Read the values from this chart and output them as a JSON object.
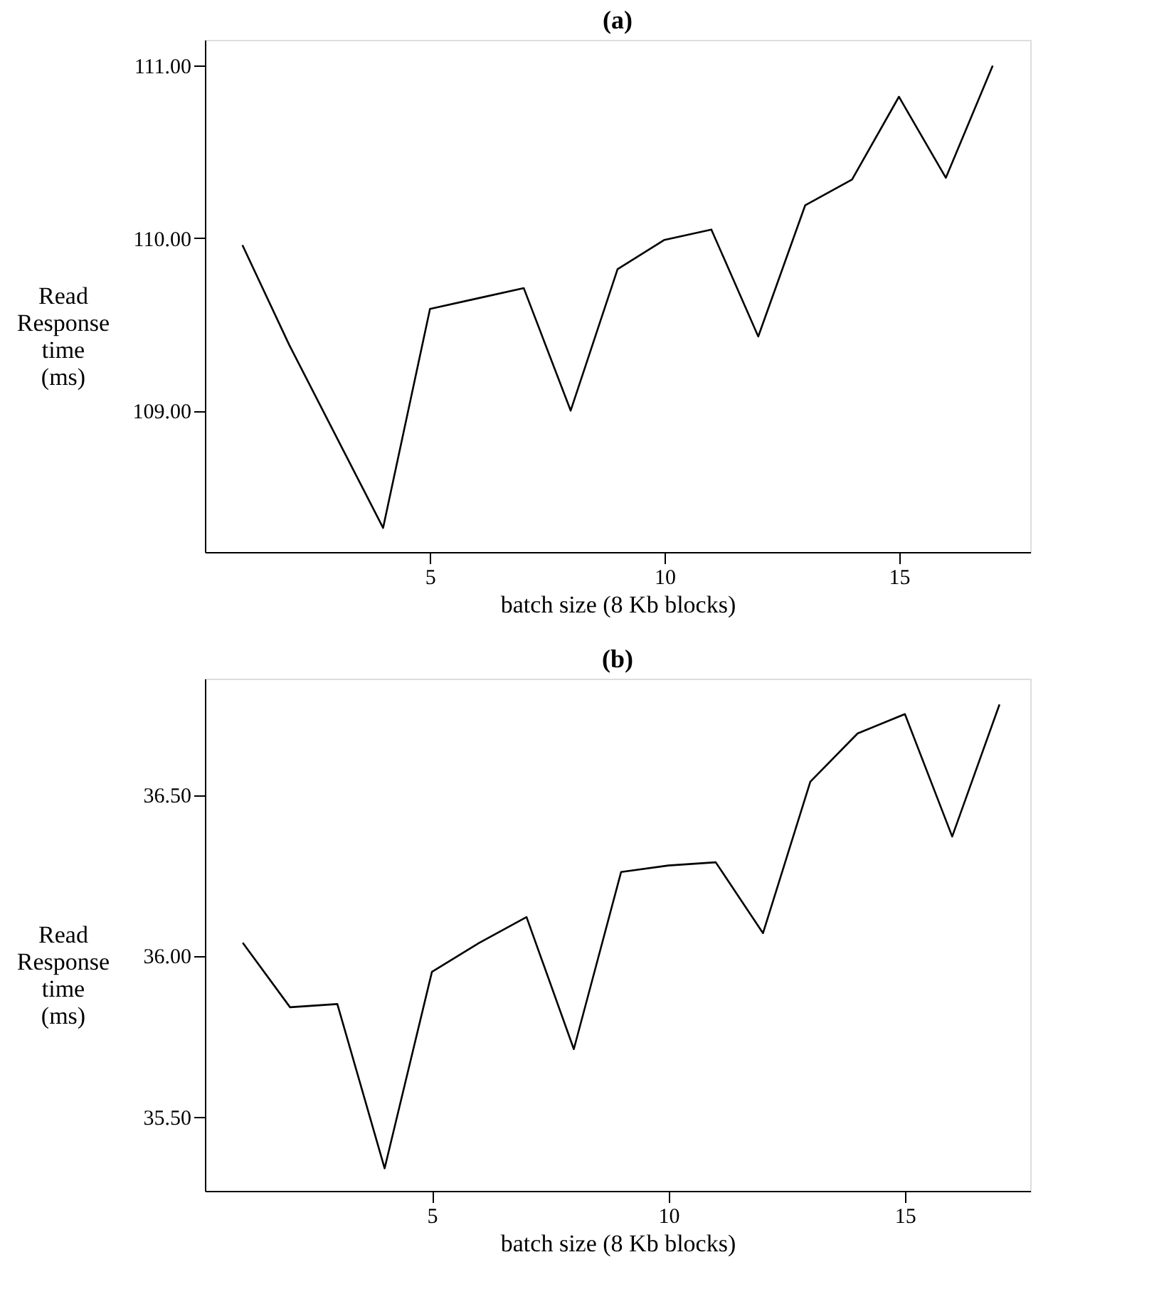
{
  "chart_data": [
    {
      "type": "line",
      "title": "(a)",
      "xlabel": "batch size (8 Kb blocks)",
      "ylabel": "Read\nResponse\ntime\n(ms)",
      "x": [
        1,
        2,
        3,
        4,
        5,
        6,
        7,
        8,
        9,
        10,
        11,
        12,
        13,
        14,
        15,
        16,
        17
      ],
      "series": [
        {
          "color": "#000000",
          "values": [
            109.96,
            109.38,
            108.85,
            108.32,
            109.59,
            109.65,
            109.71,
            109.0,
            109.82,
            109.99,
            110.05,
            109.43,
            110.19,
            110.34,
            110.82,
            110.35,
            111.0
          ]
        }
      ],
      "xlim": [
        0.2,
        17.8
      ],
      "xticks": [
        5,
        10,
        15
      ],
      "ylim": [
        108.18,
        111.15
      ],
      "yticks": [
        {
          "value": 109,
          "label": "109.00"
        },
        {
          "value": 110,
          "label": "110.00"
        },
        {
          "value": 111,
          "label": "111.00"
        }
      ],
      "grid": false,
      "marker": "none",
      "line_style": "solid"
    },
    {
      "type": "line",
      "title": "(b)",
      "xlabel": "batch size (8 Kb blocks)",
      "ylabel": "Read\nResponse\ntime\n(ms)",
      "x": [
        1,
        2,
        3,
        4,
        5,
        6,
        7,
        8,
        9,
        10,
        11,
        12,
        13,
        14,
        15,
        16,
        17
      ],
      "series": [
        {
          "color": "#000000",
          "values": [
            36.04,
            35.84,
            35.85,
            35.34,
            35.95,
            36.04,
            36.12,
            35.71,
            36.26,
            36.28,
            36.29,
            36.07,
            36.54,
            36.69,
            36.75,
            36.37,
            36.78
          ]
        }
      ],
      "xlim": [
        0.2,
        17.65
      ],
      "xticks": [
        5,
        10,
        15
      ],
      "ylim": [
        35.27,
        36.86
      ],
      "yticks": [
        {
          "value": 35.5,
          "label": "35.50"
        },
        {
          "value": 36,
          "label": "36.00"
        },
        {
          "value": 36.5,
          "label": "36.50"
        }
      ],
      "grid": false,
      "marker": "none",
      "line_style": "solid"
    }
  ]
}
